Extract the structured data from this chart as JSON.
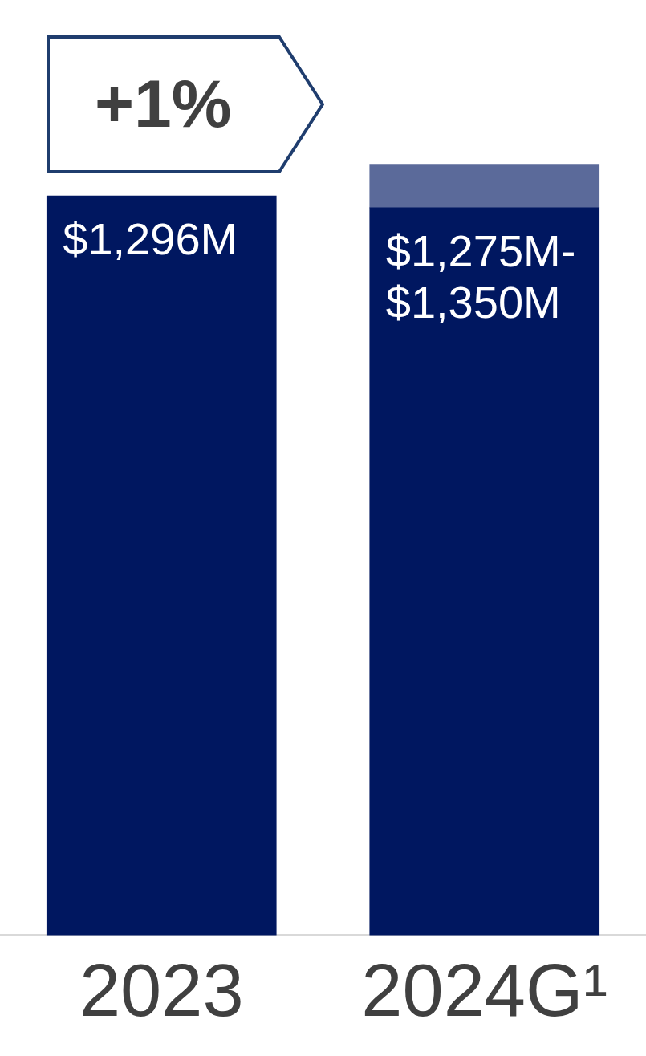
{
  "chart_data": {
    "type": "bar",
    "categories": [
      "2023",
      "2024G¹"
    ],
    "stacked": true,
    "series": [
      {
        "color": "#001760",
        "values": [
          1296,
          1275
        ],
        "value_labels": [
          "$1,296M",
          null
        ]
      },
      {
        "color": "#5b6a9a",
        "values": [
          null,
          75
        ]
      }
    ],
    "tick_labels": "x",
    "grid": false,
    "legend": false,
    "annotations": [
      "+1%",
      {
        "text": "$1,275M-$1,350M",
        "x": "2024G¹",
        "y": 1275
      }
    ]
  }
}
